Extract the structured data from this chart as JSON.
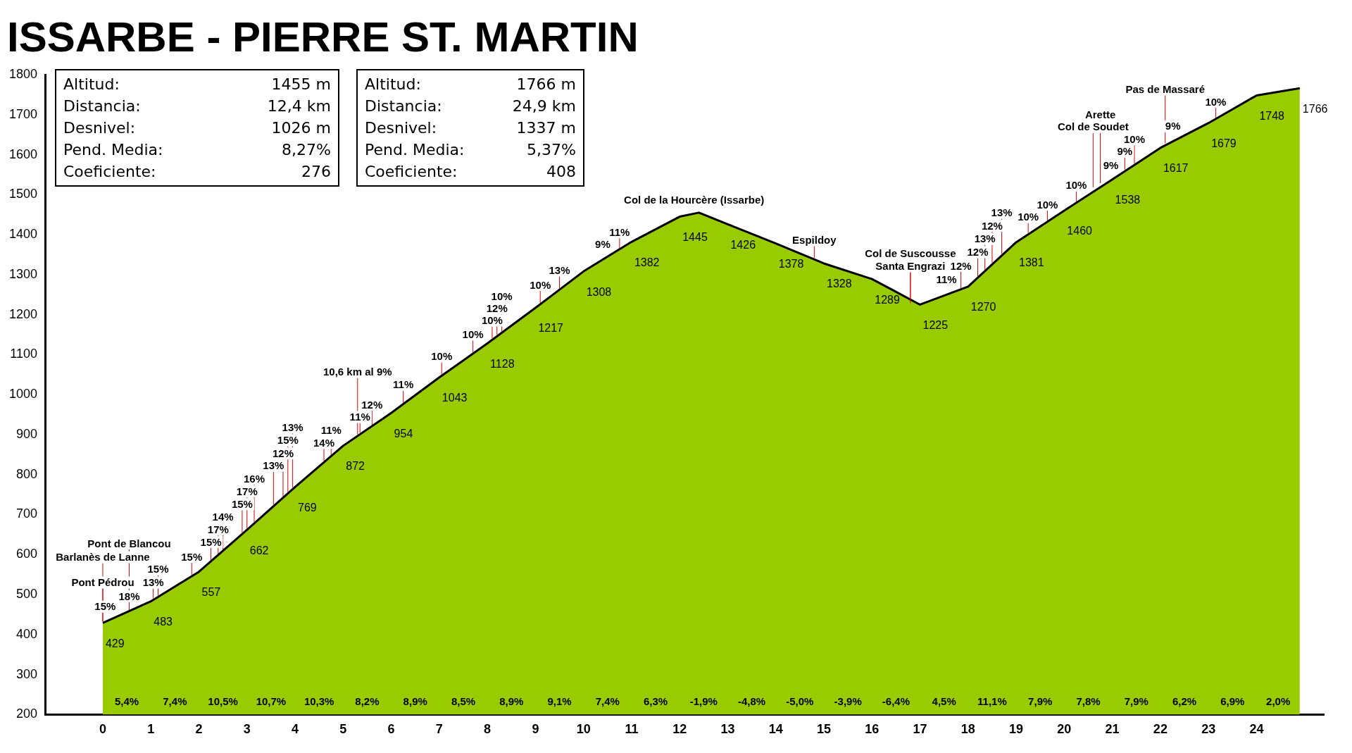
{
  "chart_data": {
    "type": "area",
    "title": "ISSARBE - PIERRE ST. MARTIN",
    "x": [
      0,
      1,
      2,
      3,
      4,
      5,
      6,
      7,
      8,
      9,
      10,
      11,
      12,
      12.4,
      13,
      14,
      15,
      16,
      17,
      18,
      19,
      20,
      21,
      22,
      23,
      24,
      24.9
    ],
    "values": [
      429,
      483,
      557,
      662,
      769,
      872,
      954,
      1043,
      1128,
      1217,
      1308,
      1382,
      1445,
      1455,
      1426,
      1378,
      1328,
      1289,
      1225,
      1270,
      1381,
      1460,
      1538,
      1617,
      1679,
      1748,
      1766
    ],
    "value_labels": [
      "429",
      "483",
      "557",
      "662",
      "769",
      "872",
      "954",
      "1043",
      "1128",
      "1217",
      "1308",
      "1382",
      "1445",
      null,
      "1426",
      "1378",
      "1328",
      "1289",
      "1225",
      "1270",
      "1381",
      "1460",
      "1538",
      "1617",
      "1679",
      "1748",
      "1766"
    ],
    "color": "#99cc00",
    "xlim": [
      -1.2,
      25.4
    ],
    "xticks": [
      0,
      1,
      2,
      3,
      4,
      5,
      6,
      7,
      8,
      9,
      10,
      11,
      12,
      13,
      14,
      15,
      16,
      17,
      18,
      19,
      20,
      21,
      22,
      23,
      24
    ],
    "ylim": [
      200,
      1800
    ],
    "yticks": [
      200,
      300,
      400,
      500,
      600,
      700,
      800,
      900,
      1000,
      1100,
      1200,
      1300,
      1400,
      1500,
      1600,
      1700,
      1800
    ],
    "grid": false,
    "legend": false,
    "annotations": [
      "Altitud: 1455 m",
      "Distancia: 12,4 km",
      "Desnivel: 1026 m",
      "Pend. Media: 8,27%",
      "Coeficiente: 276",
      "Altitud: 1766 m",
      "Distancia: 24,9 km",
      "Desnivel: 1337 m",
      "Pend. Media: 5,37%",
      "Coeficiente: 408",
      {
        "text": "5,4%",
        "x": 0.5,
        "y": 200
      },
      {
        "text": "7,4%",
        "x": 1.5,
        "y": 200
      },
      {
        "text": "10,5%",
        "x": 2.5,
        "y": 200
      },
      {
        "text": "10,7%",
        "x": 3.5,
        "y": 200
      },
      {
        "text": "10,3%",
        "x": 4.5,
        "y": 200
      },
      {
        "text": "8,2%",
        "x": 5.5,
        "y": 200
      },
      {
        "text": "8,9%",
        "x": 6.5,
        "y": 200
      },
      {
        "text": "8,5%",
        "x": 7.5,
        "y": 200
      },
      {
        "text": "8,9%",
        "x": 8.5,
        "y": 200
      },
      {
        "text": "9,1%",
        "x": 9.5,
        "y": 200
      },
      {
        "text": "7,4%",
        "x": 10.5,
        "y": 200
      },
      {
        "text": "6,3%",
        "x": 11.5,
        "y": 200
      },
      {
        "text": "-1,9%",
        "x": 12.5,
        "y": 200
      },
      {
        "text": "-4,8%",
        "x": 13.5,
        "y": 200
      },
      {
        "text": "-5,0%",
        "x": 14.5,
        "y": 200
      },
      {
        "text": "-3,9%",
        "x": 15.5,
        "y": 200
      },
      {
        "text": "-6,4%",
        "x": 16.5,
        "y": 200
      },
      {
        "text": "4,5%",
        "x": 17.5,
        "y": 200
      },
      {
        "text": "11,1%",
        "x": 18.5,
        "y": 200
      },
      {
        "text": "7,9%",
        "x": 19.5,
        "y": 200
      },
      {
        "text": "7,8%",
        "x": 20.5,
        "y": 200
      },
      {
        "text": "7,9%",
        "x": 21.5,
        "y": 200
      },
      {
        "text": "6,2%",
        "x": 22.5,
        "y": 200
      },
      {
        "text": "6,9%",
        "x": 23.5,
        "y": 200
      },
      {
        "text": "2,0%",
        "x": 24.45,
        "y": 200
      },
      {
        "text": "15%",
        "x": 0.05,
        "y": 432
      },
      {
        "text": "18%",
        "x": 0.55,
        "y": 458
      },
      {
        "text": "13%",
        "x": 1.05,
        "y": 487
      },
      {
        "text": "15%",
        "x": 1.15,
        "y": 494
      },
      {
        "text": "15%",
        "x": 1.85,
        "y": 546
      },
      {
        "text": "15%",
        "x": 2.25,
        "y": 583
      },
      {
        "text": "17%",
        "x": 2.4,
        "y": 599
      },
      {
        "text": "14%",
        "x": 2.5,
        "y": 609
      },
      {
        "text": "15%",
        "x": 2.9,
        "y": 651
      },
      {
        "text": "17%",
        "x": 3.0,
        "y": 662
      },
      {
        "text": "16%",
        "x": 3.15,
        "y": 678
      },
      {
        "text": "13%",
        "x": 3.55,
        "y": 721
      },
      {
        "text": "12%",
        "x": 3.75,
        "y": 741
      },
      {
        "text": "15%",
        "x": 3.85,
        "y": 753
      },
      {
        "text": "13%",
        "x": 3.95,
        "y": 764
      },
      {
        "text": "14%",
        "x": 4.6,
        "y": 831
      },
      {
        "text": "11%",
        "x": 4.75,
        "y": 846
      },
      {
        "text": "11%",
        "x": 5.35,
        "y": 901
      },
      {
        "text": "12%",
        "x": 5.6,
        "y": 921
      },
      {
        "text": "11%",
        "x": 6.25,
        "y": 976
      },
      {
        "text": "10%",
        "x": 7.05,
        "y": 1047
      },
      {
        "text": "10%",
        "x": 7.7,
        "y": 1102
      },
      {
        "text": "10%",
        "x": 8.1,
        "y": 1137
      },
      {
        "text": "12%",
        "x": 8.2,
        "y": 1146
      },
      {
        "text": "10%",
        "x": 8.3,
        "y": 1155
      },
      {
        "text": "10%",
        "x": 9.1,
        "y": 1226
      },
      {
        "text": "13%",
        "x": 9.5,
        "y": 1262
      },
      {
        "text": "9%",
        "x": 10.4,
        "y": 1338
      },
      {
        "text": "11%",
        "x": 10.75,
        "y": 1363
      },
      {
        "text": "11%",
        "x": 17.55,
        "y": 1250
      },
      {
        "text": "12%",
        "x": 17.85,
        "y": 1263
      },
      {
        "text": "12%",
        "x": 18.2,
        "y": 1292
      },
      {
        "text": "13%",
        "x": 18.35,
        "y": 1309
      },
      {
        "text": "12%",
        "x": 18.5,
        "y": 1326
      },
      {
        "text": "13%",
        "x": 18.7,
        "y": 1348
      },
      {
        "text": "10%",
        "x": 19.25,
        "y": 1401
      },
      {
        "text": "10%",
        "x": 19.65,
        "y": 1432
      },
      {
        "text": "10%",
        "x": 20.25,
        "y": 1480
      },
      {
        "text": "9%",
        "x": 20.97,
        "y": 1536
      },
      {
        "text": "9%",
        "x": 21.26,
        "y": 1559
      },
      {
        "text": "10%",
        "x": 21.46,
        "y": 1574
      },
      {
        "text": "9%",
        "x": 22.26,
        "y": 1633
      },
      {
        "text": "10%",
        "x": 23.15,
        "y": 1689
      },
      {
        "text": "Barlanès de Lanne",
        "x": 0,
        "y": 429
      },
      {
        "text": "Pont Pédrou",
        "x": 0,
        "y": 429
      },
      {
        "text": "Pont de Blancou",
        "x": 0.55,
        "y": 458
      },
      {
        "text": "10,6 km al 9%",
        "x": 5.3,
        "y": 897
      },
      {
        "text": "Col de la Hourcère (Issarbe)",
        "x": 12.3,
        "y": 1455
      },
      {
        "text": "Espildoy",
        "x": 14.8,
        "y": 1338
      },
      {
        "text": "Col de Suscousse",
        "x": 16.8,
        "y": 1235
      },
      {
        "text": "Santa Engrazi",
        "x": 16.8,
        "y": 1225
      },
      {
        "text": "Col de Soudet",
        "x": 20.6,
        "y": 1515
      },
      {
        "text": "Arette",
        "x": 20.75,
        "y": 1525
      },
      {
        "text": "Pas de Massaré",
        "x": 22.1,
        "y": 1625
      }
    ]
  }
}
